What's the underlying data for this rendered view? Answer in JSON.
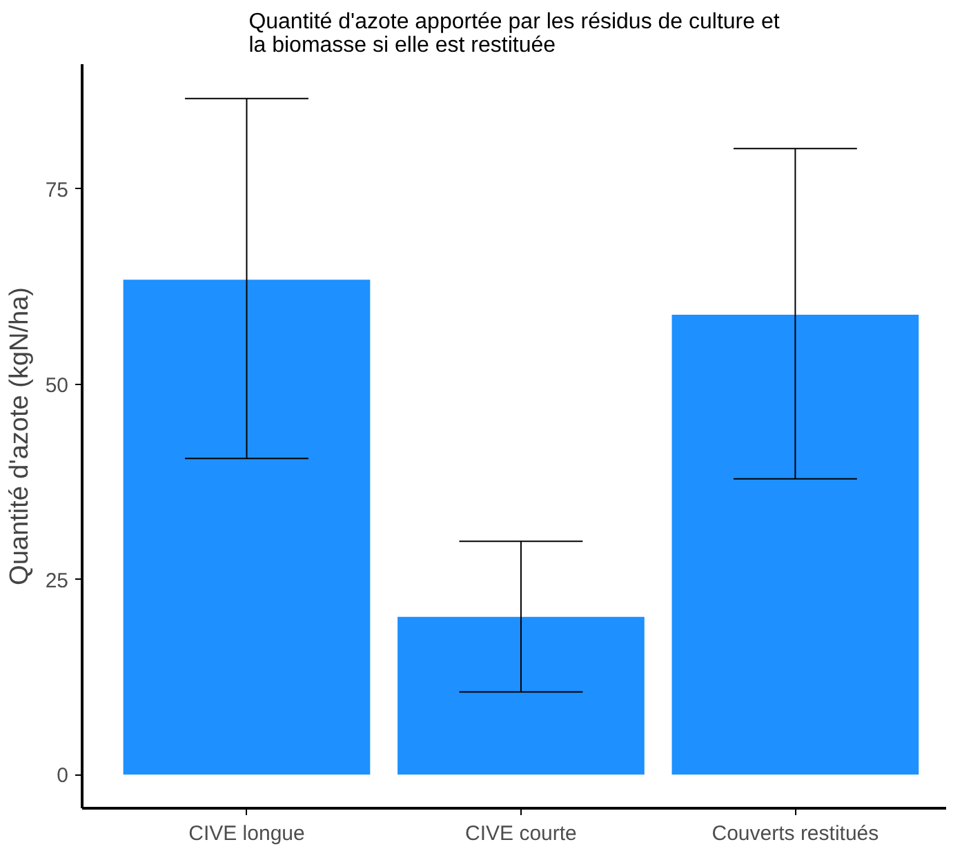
{
  "chart_data": {
    "type": "bar",
    "title": "Quantité d'azote apportée par les résidus de culture et\nla biomasse si elle est restituée",
    "ylabel": "Quantité d'azote (kgN/ha)",
    "categories": [
      "CIVE longue",
      "CIVE courte",
      "Couverts restitués"
    ],
    "values": [
      63.4,
      20.2,
      58.9
    ],
    "color": "#1e90ff",
    "errors": [
      [
        40.5,
        86.6
      ],
      [
        10.6,
        29.9
      ],
      [
        37.9,
        80.2
      ]
    ],
    "ylim": [
      -4.3,
      91
    ],
    "yticks": [
      0,
      25,
      50,
      75
    ],
    "grid": false
  }
}
